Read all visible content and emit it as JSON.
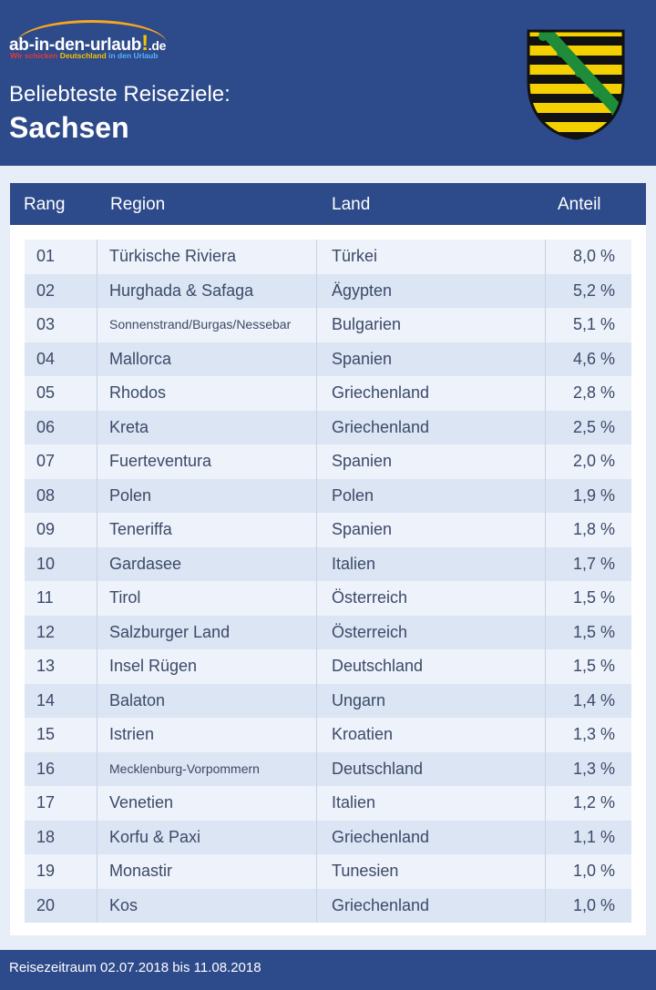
{
  "logo": {
    "main": "ab-in-den-urlaub",
    "bang": "!",
    "domain": ".de",
    "tagline_1": "Wir schicken ",
    "tagline_2": "Deutschland",
    "tagline_3": " in den Urlaub"
  },
  "header": {
    "subtitle": "Beliebteste Reiseziele:",
    "title": "Sachsen",
    "coat_of_arms_icon": "saxony-coat-of-arms-icon"
  },
  "colors": {
    "header_blue": "#2d4a8a",
    "row_light": "#eef2fa",
    "row_dark": "#dce5f4",
    "text": "#3b4a68",
    "coat_yellow": "#f5d000",
    "coat_green": "#1f8c3a"
  },
  "table": {
    "columns": [
      "Rang",
      "Region",
      "Land",
      "Anteil"
    ],
    "rows": [
      {
        "rang": "01",
        "region": "Türkische Riviera",
        "land": "Türkei",
        "anteil": "8,0 %"
      },
      {
        "rang": "02",
        "region": "Hurghada & Safaga",
        "land": "Ägypten",
        "anteil": "5,2 %"
      },
      {
        "rang": "03",
        "region": "Sonnenstrand/Burgas/Nessebar",
        "land": "Bulgarien",
        "anteil": "5,1 %"
      },
      {
        "rang": "04",
        "region": "Mallorca",
        "land": "Spanien",
        "anteil": "4,6 %"
      },
      {
        "rang": "05",
        "region": "Rhodos",
        "land": "Griechenland",
        "anteil": "2,8 %"
      },
      {
        "rang": "06",
        "region": "Kreta",
        "land": "Griechenland",
        "anteil": "2,5 %"
      },
      {
        "rang": "07",
        "region": "Fuerteventura",
        "land": "Spanien",
        "anteil": "2,0 %"
      },
      {
        "rang": "08",
        "region": "Polen",
        "land": "Polen",
        "anteil": "1,9 %"
      },
      {
        "rang": "09",
        "region": "Teneriffa",
        "land": "Spanien",
        "anteil": "1,8 %"
      },
      {
        "rang": "10",
        "region": "Gardasee",
        "land": "Italien",
        "anteil": "1,7 %"
      },
      {
        "rang": "11",
        "region": "Tirol",
        "land": "Österreich",
        "anteil": "1,5 %"
      },
      {
        "rang": "12",
        "region": "Salzburger Land",
        "land": "Österreich",
        "anteil": "1,5 %"
      },
      {
        "rang": "13",
        "region": "Insel Rügen",
        "land": "Deutschland",
        "anteil": "1,5 %"
      },
      {
        "rang": "14",
        "region": "Balaton",
        "land": "Ungarn",
        "anteil": "1,4 %"
      },
      {
        "rang": "15",
        "region": "Istrien",
        "land": "Kroatien",
        "anteil": "1,3 %"
      },
      {
        "rang": "16",
        "region": "Mecklenburg-Vorpommern",
        "land": "Deutschland",
        "anteil": "1,3 %"
      },
      {
        "rang": "17",
        "region": "Venetien",
        "land": "Italien",
        "anteil": "1,2 %"
      },
      {
        "rang": "18",
        "region": "Korfu & Paxi",
        "land": "Griechenland",
        "anteil": "1,1 %"
      },
      {
        "rang": "19",
        "region": "Monastir",
        "land": "Tunesien",
        "anteil": "1,0 %"
      },
      {
        "rang": "20",
        "region": "Kos",
        "land": "Griechenland",
        "anteil": "1,0 %"
      }
    ]
  },
  "footer": {
    "text": "Reisezeitraum 02.07.2018 bis 11.08.2018"
  }
}
